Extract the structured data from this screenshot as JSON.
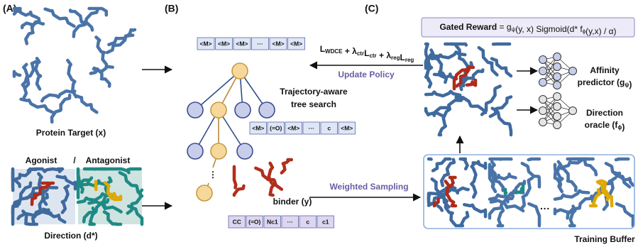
{
  "panels": [
    "(A)",
    "(B)",
    "(C)"
  ],
  "panel_a": {
    "target_label": "Protein Target (x)",
    "agonist": "Agonist",
    "separator": "/",
    "antagonist": "Antagonist",
    "direction_label": "Direction (d*)"
  },
  "panel_b": {
    "top_tokens": [
      "<M>",
      "<M>",
      "<M>",
      "···",
      "<M>",
      "<M>"
    ],
    "search_label": [
      "Trajectory-aware",
      "tree search"
    ],
    "mid_tokens": [
      "<M>",
      "(=O)",
      "<M>",
      "···",
      "c",
      "<M>"
    ],
    "ellipsis": "⋮",
    "binder_label": "binder (y)",
    "bottom_tokens": [
      "CC",
      "(=O)",
      "Nc1",
      "···",
      "c",
      "c1"
    ]
  },
  "panel_c": {
    "loss": [
      {
        "main": "L",
        "sub": "WDCE"
      },
      {
        "main": " + λ",
        "sub": "ctr"
      },
      {
        "main": "L",
        "sub": "ctr"
      },
      {
        "main": " + λ",
        "sub": "reg"
      },
      {
        "main": "L",
        "sub": "reg"
      }
    ],
    "update_label": "Update Policy",
    "sampling_label": "Weighted Sampling",
    "reward": {
      "bold": "Gated Reward",
      "parts": [
        {
          "main": " = g",
          "sub": "ψ"
        },
        {
          "main": "(y, x) Sigmoid(d* f",
          "sub": "ϕ"
        },
        {
          "main": "(y,x) / α)"
        }
      ]
    },
    "affinity": {
      "line1": "Affinity",
      "line2": [
        {
          "main": "predictor (g",
          "sub": "ψ"
        },
        {
          "main": ")"
        }
      ]
    },
    "oracle": {
      "line1": "Direction",
      "line2": [
        {
          "main": "oracle (f",
          "sub": "ϕ"
        },
        {
          "main": ")"
        }
      ]
    },
    "buffer_ellipsis": "···",
    "buffer_label": "Training Buffer"
  }
}
